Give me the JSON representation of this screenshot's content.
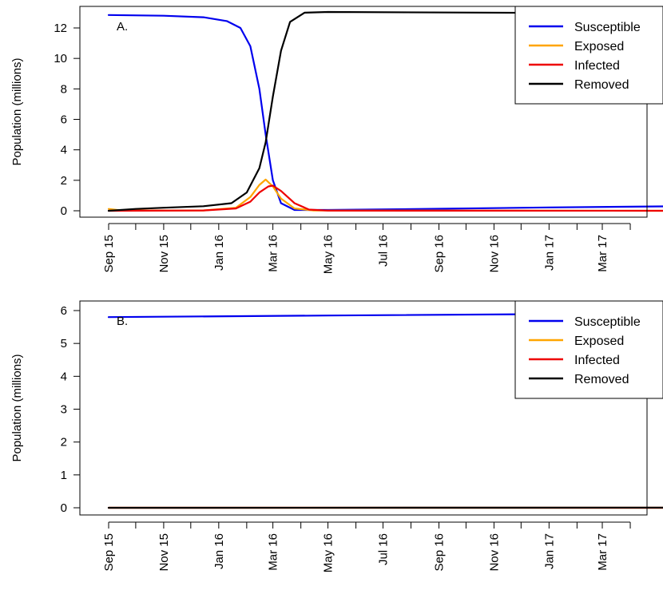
{
  "chart_data": [
    {
      "type": "line",
      "panel_label": "A.",
      "ylabel": "Population (millions)",
      "ylim": [
        0,
        13
      ],
      "yticks": [
        0,
        2,
        4,
        6,
        8,
        10,
        12
      ],
      "xlim": [
        "2015-09-01",
        "2017-05-31"
      ],
      "x_tick_labels": [
        "Sep 15",
        "Nov 15",
        "Jan 16",
        "Mar 16",
        "May 16",
        "Jul 16",
        "Sep 16",
        "Nov 16",
        "Jan 17",
        "Mar 17"
      ],
      "x_tick_dates": [
        "2015-09-01",
        "2015-11-01",
        "2016-01-01",
        "2016-03-01",
        "2016-05-01",
        "2016-07-01",
        "2016-09-01",
        "2016-11-01",
        "2017-01-01",
        "2017-03-01"
      ],
      "x_minor_tick_dates": [
        "2015-10-01",
        "2015-12-01",
        "2016-02-01",
        "2016-04-01",
        "2016-06-01",
        "2016-08-01",
        "2016-10-01",
        "2016-12-01",
        "2017-02-01",
        "2017-04-01"
      ],
      "grid": false,
      "legend_position": "top-right",
      "series": [
        {
          "name": "Susceptible",
          "color": "#0000EE",
          "points": [
            [
              "2015-09-01",
              12.85
            ],
            [
              "2015-11-01",
              12.8
            ],
            [
              "2015-12-15",
              12.7
            ],
            [
              "2016-01-10",
              12.45
            ],
            [
              "2016-01-25",
              12.0
            ],
            [
              "2016-02-05",
              10.8
            ],
            [
              "2016-02-15",
              8.0
            ],
            [
              "2016-02-22",
              5.0
            ],
            [
              "2016-03-01",
              2.0
            ],
            [
              "2016-03-10",
              0.5
            ],
            [
              "2016-03-25",
              0.05
            ],
            [
              "2016-05-01",
              0.05
            ],
            [
              "2016-09-01",
              0.13
            ],
            [
              "2017-01-01",
              0.22
            ],
            [
              "2017-05-31",
              0.3
            ]
          ]
        },
        {
          "name": "Exposed",
          "color": "#FFA500",
          "points": [
            [
              "2015-09-01",
              0.12
            ],
            [
              "2015-09-15",
              0.02
            ],
            [
              "2015-12-15",
              0.02
            ],
            [
              "2016-01-20",
              0.2
            ],
            [
              "2016-02-05",
              0.9
            ],
            [
              "2016-02-15",
              1.7
            ],
            [
              "2016-02-22",
              2.05
            ],
            [
              "2016-03-01",
              1.6
            ],
            [
              "2016-03-10",
              0.8
            ],
            [
              "2016-03-25",
              0.15
            ],
            [
              "2016-04-15",
              0.02
            ],
            [
              "2017-05-31",
              0.0
            ]
          ]
        },
        {
          "name": "Infected",
          "color": "#EE0000",
          "points": [
            [
              "2015-09-01",
              0.0
            ],
            [
              "2015-12-15",
              0.02
            ],
            [
              "2016-01-20",
              0.15
            ],
            [
              "2016-02-05",
              0.6
            ],
            [
              "2016-02-15",
              1.2
            ],
            [
              "2016-02-25",
              1.6
            ],
            [
              "2016-03-01",
              1.65
            ],
            [
              "2016-03-10",
              1.3
            ],
            [
              "2016-03-25",
              0.5
            ],
            [
              "2016-04-10",
              0.08
            ],
            [
              "2016-05-01",
              0.01
            ],
            [
              "2017-05-31",
              0.0
            ]
          ]
        },
        {
          "name": "Removed",
          "color": "#000000",
          "points": [
            [
              "2015-09-01",
              0.0
            ],
            [
              "2015-10-01",
              0.12
            ],
            [
              "2015-11-01",
              0.2
            ],
            [
              "2015-12-15",
              0.3
            ],
            [
              "2016-01-15",
              0.5
            ],
            [
              "2016-02-01",
              1.2
            ],
            [
              "2016-02-15",
              2.8
            ],
            [
              "2016-02-22",
              4.5
            ],
            [
              "2016-03-01",
              7.5
            ],
            [
              "2016-03-10",
              10.5
            ],
            [
              "2016-03-20",
              12.4
            ],
            [
              "2016-04-05",
              13.0
            ],
            [
              "2016-05-01",
              13.05
            ],
            [
              "2017-05-31",
              12.95
            ]
          ]
        }
      ]
    },
    {
      "type": "line",
      "panel_label": "B.",
      "ylabel": "Population (millions)",
      "ylim": [
        0,
        6
      ],
      "yticks": [
        0,
        1,
        2,
        3,
        4,
        5,
        6
      ],
      "xlim": [
        "2015-09-01",
        "2017-05-31"
      ],
      "x_tick_labels": [
        "Sep 15",
        "Nov 15",
        "Jan 16",
        "Mar 16",
        "May 16",
        "Jul 16",
        "Sep 16",
        "Nov 16",
        "Jan 17",
        "Mar 17"
      ],
      "x_tick_dates": [
        "2015-09-01",
        "2015-11-01",
        "2016-01-01",
        "2016-03-01",
        "2016-05-01",
        "2016-07-01",
        "2016-09-01",
        "2016-11-01",
        "2017-01-01",
        "2017-03-01"
      ],
      "x_minor_tick_dates": [
        "2015-10-01",
        "2015-12-01",
        "2016-02-01",
        "2016-04-01",
        "2016-06-01",
        "2016-08-01",
        "2016-10-01",
        "2016-12-01",
        "2017-02-01",
        "2017-04-01"
      ],
      "grid": false,
      "legend_position": "top-right",
      "series": [
        {
          "name": "Susceptible",
          "color": "#0000EE",
          "points": [
            [
              "2015-09-01",
              5.8
            ],
            [
              "2016-05-01",
              5.85
            ],
            [
              "2017-05-31",
              5.92
            ]
          ]
        },
        {
          "name": "Exposed",
          "color": "#FFA500",
          "points": [
            [
              "2015-09-01",
              0.0
            ],
            [
              "2017-05-31",
              0.0
            ]
          ]
        },
        {
          "name": "Infected",
          "color": "#EE0000",
          "points": [
            [
              "2015-09-01",
              0.0
            ],
            [
              "2017-05-31",
              0.0
            ]
          ]
        },
        {
          "name": "Removed",
          "color": "#000000",
          "points": [
            [
              "2015-09-01",
              0.0
            ],
            [
              "2017-05-31",
              0.005
            ]
          ]
        }
      ]
    }
  ]
}
